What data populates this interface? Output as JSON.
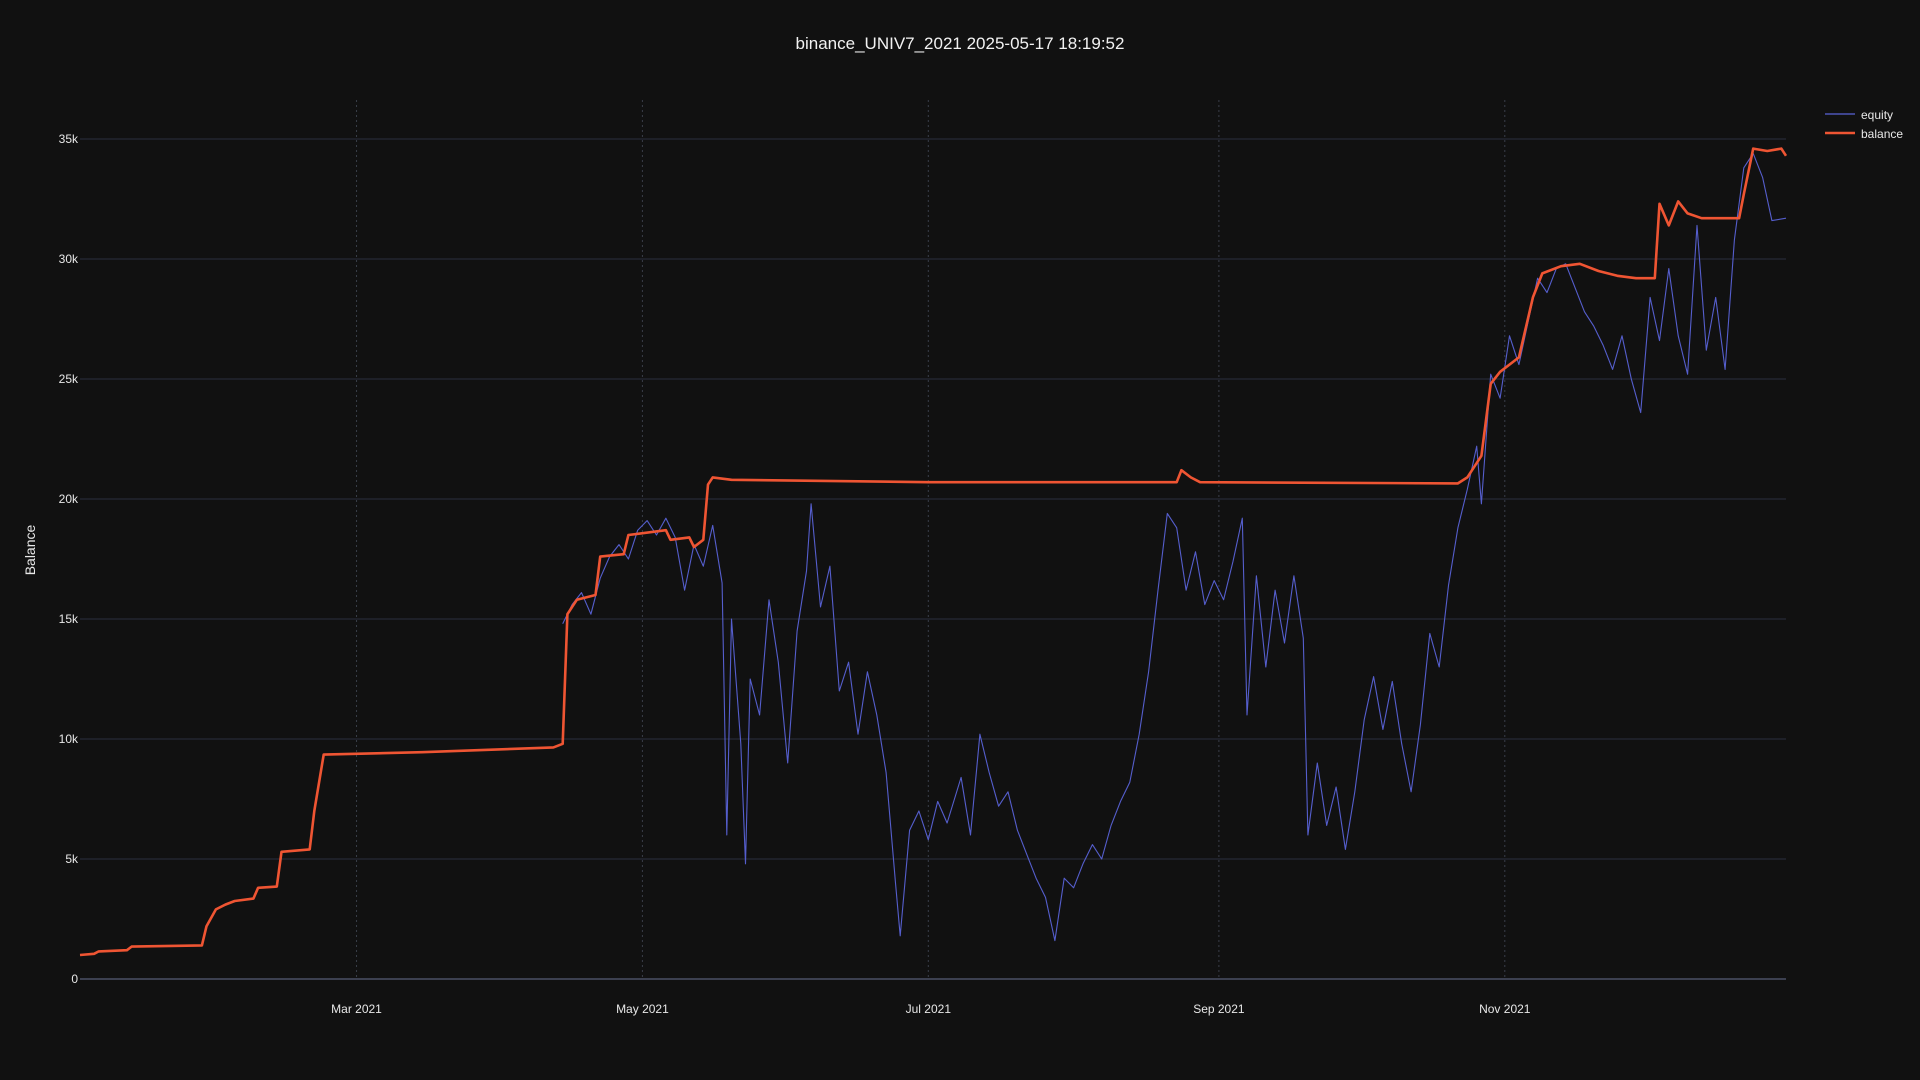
{
  "chart_data": {
    "type": "line",
    "title": "binance_UNIV7_2021 2025-05-17 18:19:52",
    "xlabel": "",
    "ylabel": "Balance",
    "x_range": [
      "2021-01-01",
      "2021-12-31"
    ],
    "ylim": [
      0,
      35000
    ],
    "y_ticks": [
      0,
      5000,
      10000,
      15000,
      20000,
      25000,
      30000,
      35000
    ],
    "y_tick_labels": [
      "0",
      "5k",
      "10k",
      "15k",
      "20k",
      "25k",
      "30k",
      "35k"
    ],
    "x_ticks": [
      "2021-03-01",
      "2021-05-01",
      "2021-07-01",
      "2021-09-01",
      "2021-11-01"
    ],
    "x_tick_labels": [
      "Mar 2021",
      "May 2021",
      "Jul 2021",
      "Sep 2021",
      "Nov 2021"
    ],
    "grid": true,
    "legend_position": "top-right",
    "colors": {
      "background": "#111111",
      "grid": "#2b3040",
      "vgrid": "#3a3f4a",
      "equity": "#5a63d8",
      "balance": "#ef5533",
      "text": "#e8e8e8"
    },
    "series": [
      {
        "name": "equity",
        "style": "thin",
        "points": [
          [
            "2021-04-14",
            14800
          ],
          [
            "2021-04-16",
            15600
          ],
          [
            "2021-04-18",
            16100
          ],
          [
            "2021-04-20",
            15200
          ],
          [
            "2021-04-22",
            16700
          ],
          [
            "2021-04-24",
            17600
          ],
          [
            "2021-04-26",
            18100
          ],
          [
            "2021-04-28",
            17500
          ],
          [
            "2021-04-30",
            18700
          ],
          [
            "2021-05-02",
            19100
          ],
          [
            "2021-05-04",
            18500
          ],
          [
            "2021-05-06",
            19200
          ],
          [
            "2021-05-08",
            18400
          ],
          [
            "2021-05-10",
            16200
          ],
          [
            "2021-05-12",
            18100
          ],
          [
            "2021-05-14",
            17200
          ],
          [
            "2021-05-16",
            18900
          ],
          [
            "2021-05-18",
            16500
          ],
          [
            "2021-05-19",
            6000
          ],
          [
            "2021-05-20",
            15000
          ],
          [
            "2021-05-22",
            9800
          ],
          [
            "2021-05-23",
            4800
          ],
          [
            "2021-05-24",
            12500
          ],
          [
            "2021-05-26",
            11000
          ],
          [
            "2021-05-28",
            15800
          ],
          [
            "2021-05-30",
            13200
          ],
          [
            "2021-06-01",
            9000
          ],
          [
            "2021-06-03",
            14500
          ],
          [
            "2021-06-05",
            17000
          ],
          [
            "2021-06-06",
            19800
          ],
          [
            "2021-06-08",
            15500
          ],
          [
            "2021-06-10",
            17200
          ],
          [
            "2021-06-12",
            12000
          ],
          [
            "2021-06-14",
            13200
          ],
          [
            "2021-06-16",
            10200
          ],
          [
            "2021-06-18",
            12800
          ],
          [
            "2021-06-20",
            11000
          ],
          [
            "2021-06-22",
            8600
          ],
          [
            "2021-06-24",
            4000
          ],
          [
            "2021-06-25",
            1800
          ],
          [
            "2021-06-27",
            6200
          ],
          [
            "2021-06-29",
            7000
          ],
          [
            "2021-07-01",
            5800
          ],
          [
            "2021-07-03",
            7400
          ],
          [
            "2021-07-05",
            6500
          ],
          [
            "2021-07-08",
            8400
          ],
          [
            "2021-07-10",
            6000
          ],
          [
            "2021-07-12",
            10200
          ],
          [
            "2021-07-14",
            8600
          ],
          [
            "2021-07-16",
            7200
          ],
          [
            "2021-07-18",
            7800
          ],
          [
            "2021-07-20",
            6200
          ],
          [
            "2021-07-22",
            5200
          ],
          [
            "2021-07-24",
            4200
          ],
          [
            "2021-07-26",
            3400
          ],
          [
            "2021-07-28",
            1600
          ],
          [
            "2021-07-30",
            4200
          ],
          [
            "2021-08-01",
            3800
          ],
          [
            "2021-08-03",
            4800
          ],
          [
            "2021-08-05",
            5600
          ],
          [
            "2021-08-07",
            5000
          ],
          [
            "2021-08-09",
            6400
          ],
          [
            "2021-08-11",
            7400
          ],
          [
            "2021-08-13",
            8200
          ],
          [
            "2021-08-15",
            10200
          ],
          [
            "2021-08-17",
            12800
          ],
          [
            "2021-08-19",
            16200
          ],
          [
            "2021-08-21",
            19400
          ],
          [
            "2021-08-23",
            18800
          ],
          [
            "2021-08-25",
            16200
          ],
          [
            "2021-08-27",
            17800
          ],
          [
            "2021-08-29",
            15600
          ],
          [
            "2021-08-31",
            16600
          ],
          [
            "2021-09-02",
            15800
          ],
          [
            "2021-09-04",
            17400
          ],
          [
            "2021-09-06",
            19200
          ],
          [
            "2021-09-07",
            11000
          ],
          [
            "2021-09-09",
            16800
          ],
          [
            "2021-09-11",
            13000
          ],
          [
            "2021-09-13",
            16200
          ],
          [
            "2021-09-15",
            14000
          ],
          [
            "2021-09-17",
            16800
          ],
          [
            "2021-09-19",
            14200
          ],
          [
            "2021-09-20",
            6000
          ],
          [
            "2021-09-22",
            9000
          ],
          [
            "2021-09-24",
            6400
          ],
          [
            "2021-09-26",
            8000
          ],
          [
            "2021-09-28",
            5400
          ],
          [
            "2021-09-30",
            7800
          ],
          [
            "2021-10-02",
            10800
          ],
          [
            "2021-10-04",
            12600
          ],
          [
            "2021-10-06",
            10400
          ],
          [
            "2021-10-08",
            12400
          ],
          [
            "2021-10-10",
            9800
          ],
          [
            "2021-10-12",
            7800
          ],
          [
            "2021-10-14",
            10600
          ],
          [
            "2021-10-16",
            14400
          ],
          [
            "2021-10-18",
            13000
          ],
          [
            "2021-10-20",
            16400
          ],
          [
            "2021-10-22",
            18800
          ],
          [
            "2021-10-24",
            20400
          ],
          [
            "2021-10-26",
            22200
          ],
          [
            "2021-10-27",
            19800
          ],
          [
            "2021-10-29",
            25200
          ],
          [
            "2021-10-31",
            24200
          ],
          [
            "2021-11-02",
            26800
          ],
          [
            "2021-11-04",
            25600
          ],
          [
            "2021-11-06",
            27400
          ],
          [
            "2021-11-08",
            29200
          ],
          [
            "2021-11-10",
            28600
          ],
          [
            "2021-11-12",
            29600
          ],
          [
            "2021-11-14",
            29800
          ],
          [
            "2021-11-16",
            28800
          ],
          [
            "2021-11-18",
            27800
          ],
          [
            "2021-11-20",
            27200
          ],
          [
            "2021-11-22",
            26400
          ],
          [
            "2021-11-24",
            25400
          ],
          [
            "2021-11-26",
            26800
          ],
          [
            "2021-11-28",
            25000
          ],
          [
            "2021-11-30",
            23600
          ],
          [
            "2021-12-02",
            28400
          ],
          [
            "2021-12-04",
            26600
          ],
          [
            "2021-12-06",
            29600
          ],
          [
            "2021-12-08",
            26800
          ],
          [
            "2021-12-10",
            25200
          ],
          [
            "2021-12-12",
            31400
          ],
          [
            "2021-12-14",
            26200
          ],
          [
            "2021-12-16",
            28400
          ],
          [
            "2021-12-18",
            25400
          ],
          [
            "2021-12-20",
            30800
          ],
          [
            "2021-12-22",
            33800
          ],
          [
            "2021-12-24",
            34400
          ],
          [
            "2021-12-26",
            33400
          ],
          [
            "2021-12-28",
            31600
          ],
          [
            "2021-12-31",
            31700
          ]
        ]
      },
      {
        "name": "balance",
        "style": "thick",
        "points": [
          [
            "2021-01-01",
            1000
          ],
          [
            "2021-01-04",
            1050
          ],
          [
            "2021-01-05",
            1150
          ],
          [
            "2021-01-11",
            1200
          ],
          [
            "2021-01-12",
            1350
          ],
          [
            "2021-01-27",
            1400
          ],
          [
            "2021-01-28",
            2200
          ],
          [
            "2021-01-30",
            2900
          ],
          [
            "2021-02-01",
            3100
          ],
          [
            "2021-02-03",
            3250
          ],
          [
            "2021-02-07",
            3350
          ],
          [
            "2021-02-08",
            3800
          ],
          [
            "2021-02-12",
            3850
          ],
          [
            "2021-02-13",
            5300
          ],
          [
            "2021-02-19",
            5400
          ],
          [
            "2021-02-20",
            7000
          ],
          [
            "2021-02-22",
            9350
          ],
          [
            "2021-03-15",
            9450
          ],
          [
            "2021-04-12",
            9650
          ],
          [
            "2021-04-14",
            9800
          ],
          [
            "2021-04-15",
            15200
          ],
          [
            "2021-04-17",
            15800
          ],
          [
            "2021-04-21",
            16000
          ],
          [
            "2021-04-22",
            17600
          ],
          [
            "2021-04-27",
            17700
          ],
          [
            "2021-04-28",
            18500
          ],
          [
            "2021-05-06",
            18700
          ],
          [
            "2021-05-07",
            18300
          ],
          [
            "2021-05-11",
            18400
          ],
          [
            "2021-05-12",
            18000
          ],
          [
            "2021-05-14",
            18300
          ],
          [
            "2021-05-15",
            20600
          ],
          [
            "2021-05-16",
            20900
          ],
          [
            "2021-05-20",
            20800
          ],
          [
            "2021-07-01",
            20700
          ],
          [
            "2021-08-23",
            20700
          ],
          [
            "2021-08-24",
            21200
          ],
          [
            "2021-08-26",
            20900
          ],
          [
            "2021-08-28",
            20700
          ],
          [
            "2021-10-22",
            20650
          ],
          [
            "2021-10-24",
            20900
          ],
          [
            "2021-10-27",
            21800
          ],
          [
            "2021-10-29",
            24800
          ],
          [
            "2021-10-31",
            25300
          ],
          [
            "2021-11-04",
            25900
          ],
          [
            "2021-11-07",
            28400
          ],
          [
            "2021-11-09",
            29400
          ],
          [
            "2021-11-13",
            29700
          ],
          [
            "2021-11-17",
            29800
          ],
          [
            "2021-11-21",
            29500
          ],
          [
            "2021-11-25",
            29300
          ],
          [
            "2021-11-29",
            29200
          ],
          [
            "2021-12-03",
            29200
          ],
          [
            "2021-12-04",
            32300
          ],
          [
            "2021-12-06",
            31400
          ],
          [
            "2021-12-08",
            32400
          ],
          [
            "2021-12-10",
            31900
          ],
          [
            "2021-12-13",
            31700
          ],
          [
            "2021-12-21",
            31700
          ],
          [
            "2021-12-22",
            32700
          ],
          [
            "2021-12-24",
            34600
          ],
          [
            "2021-12-27",
            34500
          ],
          [
            "2021-12-30",
            34600
          ],
          [
            "2021-12-31",
            34300
          ]
        ]
      }
    ]
  }
}
